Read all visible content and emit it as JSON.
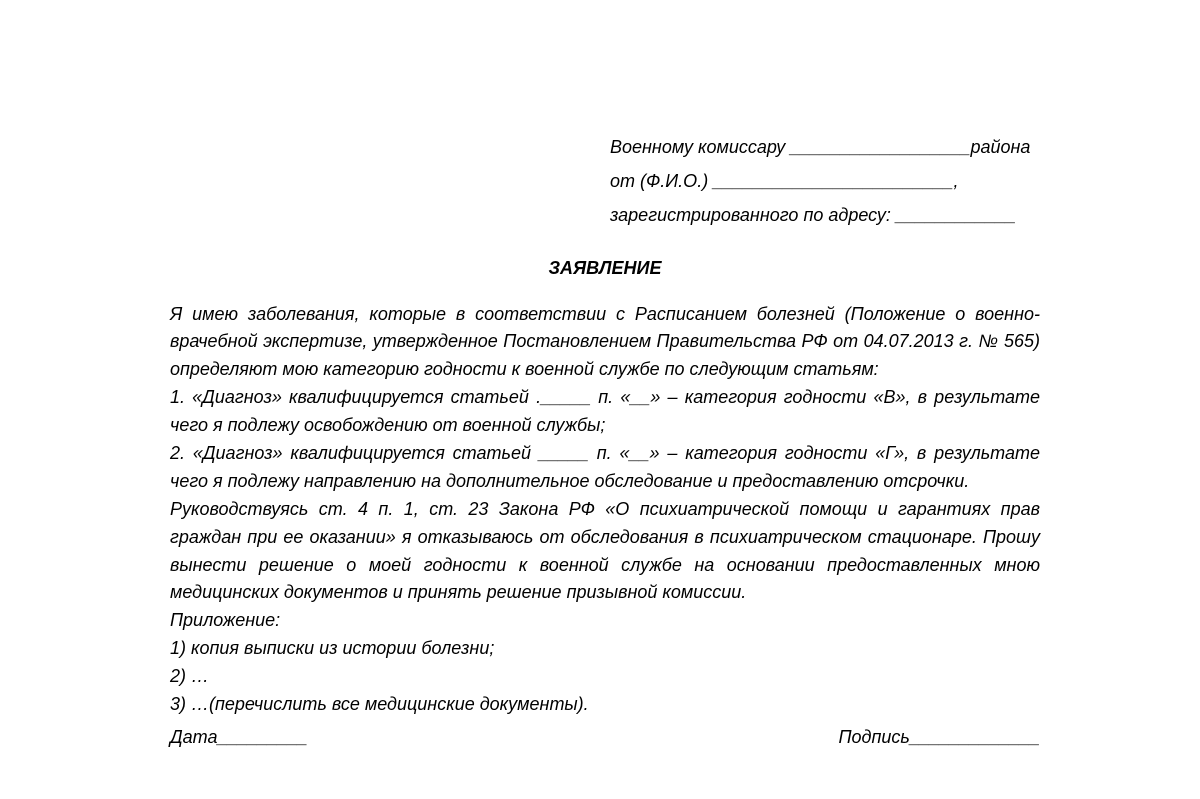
{
  "header": {
    "line1": "Военному комиссару __________________района",
    "line2": "от (Ф.И.О.) ________________________,",
    "line3": "зарегистрированного по адресу: ____________"
  },
  "title": "ЗАЯВЛЕНИЕ",
  "body": {
    "para1": "Я имею заболевания, которые в соответствии с Расписанием болезней (Положение о военно-врачебной экспертизе, утвержденное Постановлением Правительства РФ от 04.07.2013 г. № 565) определяют мою категорию годности к военной службе по следующим статьям:",
    "item1": "1. «Диагноз» квалифицируется статьей ._____ п. «__» – категория годности «В», в результате чего я подлежу освобождению от военной службы;",
    "item2": "2. «Диагноз» квалифицируется статьей _____ п. «__» – категория годности «Г», в результате чего я подлежу направлению на дополнительное обследование и предоставлению отсрочки.",
    "para2": "Руководствуясь ст. 4 п. 1, ст. 23 Закона РФ «О психиатрической помощи и гарантиях прав граждан при ее оказании» я отказываюсь от обследования в психиатрическом стационаре. Прошу вынести решение о моей годности к военной службе на основании предоставленных мною медицинских документов и принять решение призывной комиссии.",
    "attach_label": "Приложение:",
    "attach1": "1) копия выписки из истории болезни;",
    "attach2": "2) …",
    "attach3": "3) …(перечислить все медицинские документы)."
  },
  "footer": {
    "date": "Дата_________",
    "signature": "Подпись_____________"
  },
  "styling": {
    "font_family": "Arial",
    "font_style": "italic",
    "font_size_pt": 14,
    "text_color": "#000000",
    "background_color": "#ffffff",
    "line_height": 1.55
  }
}
